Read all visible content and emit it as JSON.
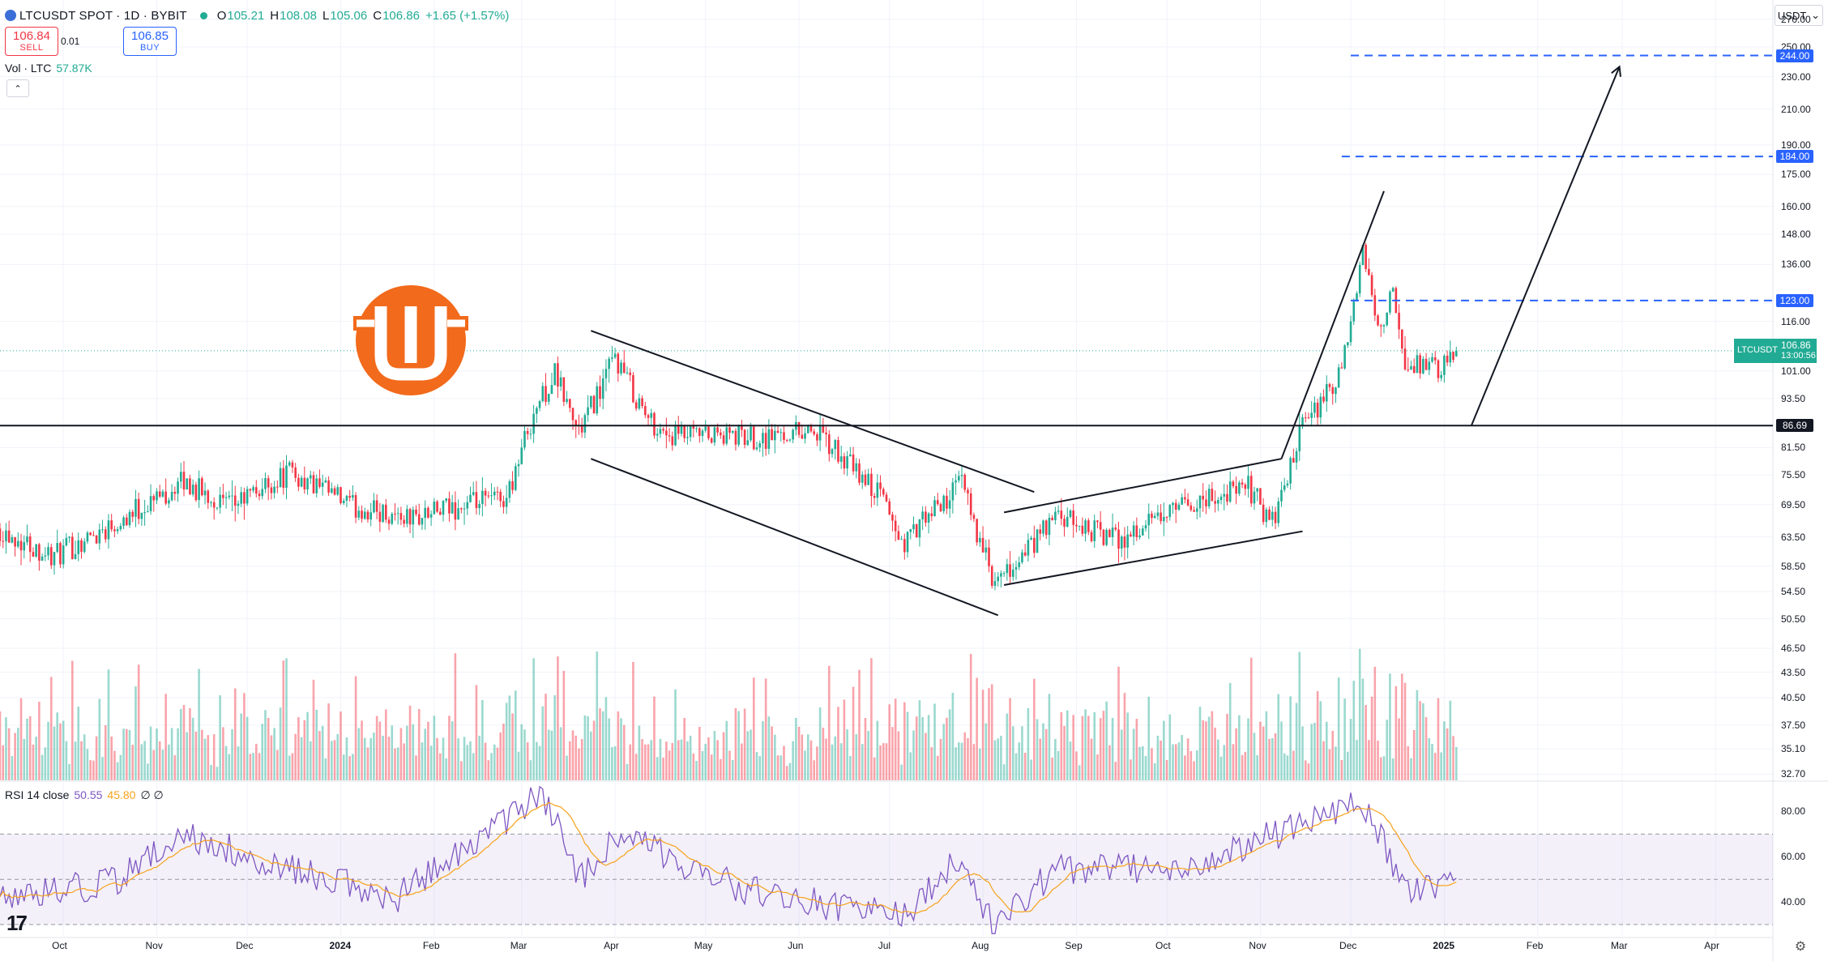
{
  "header": {
    "title": "LTCUSDT SPOT · 1D · BYBIT",
    "ohlc": [
      {
        "label": "O",
        "value": "105.21"
      },
      {
        "label": "H",
        "value": "108.08"
      },
      {
        "label": "L",
        "value": "105.06"
      },
      {
        "label": "C",
        "value": "106.86"
      },
      {
        "label": "",
        "value": "+1.65 (+1.57%)"
      }
    ],
    "sell_price": "106.84",
    "sell_label": "SELL",
    "spread": "0.01",
    "buy_price": "106.85",
    "buy_label": "BUY"
  },
  "volume_legend": {
    "label": "Vol · LTC",
    "value": "57.87K"
  },
  "rsi_legend": {
    "label": "RSI 14 close",
    "rsi": "50.55",
    "ma": "45.80",
    "extra": "∅ ∅"
  },
  "currency": "USDT",
  "colors": {
    "up": "#22ab94",
    "down": "#f23645",
    "rsi": "#7e57c2",
    "rsi_ma": "#f7a21b",
    "level_line": "#2962ff",
    "logo": "#f26a1b"
  },
  "icons": [
    "symbol-icon",
    "collapse-chevron-icon",
    "currency-chevron-icon",
    "settings-gear-icon",
    "tradingview-logo-icon",
    "brand-logo-icon"
  ],
  "price_axis": {
    "ticks": [
      "270.00",
      "250.00",
      "230.00",
      "210.00",
      "190.00",
      "175.00",
      "160.00",
      "148.00",
      "136.00",
      "116.00",
      "101.00",
      "93.50",
      "81.50",
      "75.50",
      "69.50",
      "63.50",
      "58.50",
      "54.50",
      "50.50",
      "46.50",
      "43.50",
      "40.50",
      "37.50",
      "35.10",
      "32.70"
    ],
    "level_tags": [
      {
        "label": "244.00",
        "value": 244.0,
        "color": "#2962ff"
      },
      {
        "label": "184.00",
        "value": 184.0,
        "color": "#2962ff"
      },
      {
        "label": "123.00",
        "value": 123.0,
        "color": "#2962ff"
      },
      {
        "label": "86.69",
        "value": 86.69,
        "color": "#131722"
      }
    ],
    "current": {
      "pair": "LTCUSDT",
      "price": "106.86",
      "countdown": "13:00:56",
      "value": 106.86
    }
  },
  "rsi_axis": {
    "ticks": [
      "80.00",
      "60.00",
      "40.00"
    ]
  },
  "time_axis": {
    "labels": [
      "Oct",
      "Nov",
      "Dec",
      "2024",
      "Feb",
      "Mar",
      "Apr",
      "May",
      "Jun",
      "Jul",
      "Aug",
      "Sep",
      "Oct",
      "Nov",
      "Dec",
      "2025",
      "Feb",
      "Mar",
      "Apr"
    ]
  },
  "chart_data": {
    "type": "candlestick",
    "symbol": "LTCUSDT",
    "interval": "1D",
    "price_scale": "log",
    "x_range": [
      "2023-09-10",
      "2025-04-20"
    ],
    "y_range": [
      32.0,
      285.0
    ],
    "rsi_range": [
      25,
      92
    ],
    "rsi_bands": [
      70,
      50,
      30
    ],
    "key_points": [
      {
        "date": "2023-09-10",
        "price": 65
      },
      {
        "date": "2023-09-28",
        "price": 60
      },
      {
        "date": "2023-11-10",
        "price": 74
      },
      {
        "date": "2023-11-25",
        "price": 69
      },
      {
        "date": "2023-12-15",
        "price": 76
      },
      {
        "date": "2024-01-05",
        "price": 69
      },
      {
        "date": "2024-01-25",
        "price": 67
      },
      {
        "date": "2024-02-25",
        "price": 71
      },
      {
        "date": "2024-03-05",
        "price": 90
      },
      {
        "date": "2024-03-12",
        "price": 100
      },
      {
        "date": "2024-03-20",
        "price": 85
      },
      {
        "date": "2024-04-01",
        "price": 105
      },
      {
        "date": "2024-04-12",
        "price": 88
      },
      {
        "date": "2024-04-20",
        "price": 84
      },
      {
        "date": "2024-05-20",
        "price": 84
      },
      {
        "date": "2024-06-05",
        "price": 86
      },
      {
        "date": "2024-06-30",
        "price": 70
      },
      {
        "date": "2024-07-05",
        "price": 62
      },
      {
        "date": "2024-07-25",
        "price": 74
      },
      {
        "date": "2024-08-05",
        "price": 55
      },
      {
        "date": "2024-08-25",
        "price": 67
      },
      {
        "date": "2024-09-15",
        "price": 63
      },
      {
        "date": "2024-10-10",
        "price": 70
      },
      {
        "date": "2024-10-28",
        "price": 73
      },
      {
        "date": "2024-11-05",
        "price": 66
      },
      {
        "date": "2024-11-15",
        "price": 86
      },
      {
        "date": "2024-11-28",
        "price": 100
      },
      {
        "date": "2024-12-05",
        "price": 140
      },
      {
        "date": "2024-12-10",
        "price": 115
      },
      {
        "date": "2024-12-15",
        "price": 125
      },
      {
        "date": "2024-12-19",
        "price": 100
      },
      {
        "date": "2024-12-25",
        "price": 104
      },
      {
        "date": "2024-12-30",
        "price": 100
      },
      {
        "date": "2025-01-05",
        "price": 106.86
      }
    ],
    "volume_range": [
      0,
      700000
    ],
    "rsi_key_points": [
      {
        "date": "2023-09-10",
        "rsi": 40
      },
      {
        "date": "2023-10-20",
        "rsi": 50
      },
      {
        "date": "2023-11-10",
        "rsi": 70
      },
      {
        "date": "2023-12-15",
        "rsi": 55
      },
      {
        "date": "2024-01-20",
        "rsi": 42
      },
      {
        "date": "2024-03-08",
        "rsi": 88
      },
      {
        "date": "2024-03-20",
        "rsi": 50
      },
      {
        "date": "2024-04-01",
        "rsi": 70
      },
      {
        "date": "2024-05-15",
        "rsi": 45
      },
      {
        "date": "2024-07-05",
        "rsi": 33
      },
      {
        "date": "2024-07-25",
        "rsi": 60
      },
      {
        "date": "2024-08-05",
        "rsi": 28
      },
      {
        "date": "2024-08-25",
        "rsi": 55
      },
      {
        "date": "2024-10-10",
        "rsi": 55
      },
      {
        "date": "2024-11-15",
        "rsi": 75
      },
      {
        "date": "2024-12-05",
        "rsi": 84
      },
      {
        "date": "2024-12-20",
        "rsi": 45
      },
      {
        "date": "2025-01-05",
        "rsi": 50.55
      }
    ],
    "horizontal_levels": [
      {
        "value": 86.69,
        "style": "solid",
        "color": "#131722",
        "from_date": "2023-09-10",
        "to_date": "2025-05-20"
      },
      {
        "value": 123.0,
        "style": "dashed",
        "color": "#2962ff",
        "from_date": "2024-12-01",
        "to_date": "2025-05-20"
      },
      {
        "value": 184.0,
        "style": "dashed",
        "color": "#2962ff",
        "from_date": "2024-11-28",
        "to_date": "2025-05-20"
      },
      {
        "value": 244.0,
        "style": "dashed",
        "color": "#2962ff",
        "from_date": "2024-12-01",
        "to_date": "2025-05-20"
      }
    ],
    "drawings": [
      {
        "name": "falling-channel-upper",
        "points": [
          [
            "2024-03-24",
            113
          ],
          [
            "2024-08-18",
            72
          ]
        ]
      },
      {
        "name": "falling-channel-lower",
        "points": [
          [
            "2024-03-24",
            79
          ],
          [
            "2024-08-06",
            51
          ]
        ]
      },
      {
        "name": "rising-channel-upper",
        "points": [
          [
            "2024-08-08",
            68
          ],
          [
            "2024-11-08",
            79
          ]
        ]
      },
      {
        "name": "rising-channel-lower",
        "points": [
          [
            "2024-08-08",
            55.5
          ],
          [
            "2024-11-15",
            64.5
          ]
        ]
      },
      {
        "name": "breakout-line",
        "points": [
          [
            "2024-11-08",
            79
          ],
          [
            "2024-12-12",
            167
          ]
        ]
      },
      {
        "name": "projection-line",
        "points": [
          [
            "2025-01-10",
            86.69
          ],
          [
            "2025-02-28",
            236
          ]
        ],
        "arrow": true
      }
    ]
  }
}
